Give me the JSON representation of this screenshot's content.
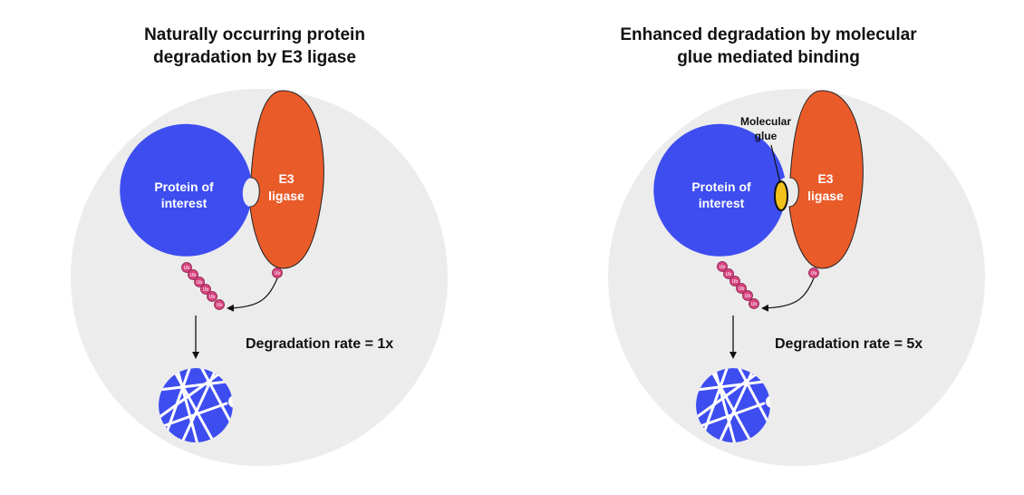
{
  "panels": [
    {
      "title_line1": "Naturally occurring protein",
      "title_line2": "degradation by E3 ligase",
      "protein_line1": "Protein of",
      "protein_line2": "interest",
      "ligase_line1": "E3",
      "ligase_line2": "ligase",
      "ubiquitin_label": "Ub",
      "rate_label": "Degradation rate = 1x"
    },
    {
      "title_line1": "Enhanced degradation by  molecular",
      "title_line2": "glue mediated binding",
      "glue_line1": "Molecular",
      "glue_line2": "glue",
      "protein_line1": "Protein of",
      "protein_line2": "interest",
      "ligase_line1": "E3",
      "ligase_line2": "ligase",
      "ubiquitin_label": "Ub",
      "rate_label": "Degradation rate = 5x"
    }
  ],
  "colors": {
    "background_circle": "#ececec",
    "protein": "#3d4df0",
    "ligase": "#ea5b2a",
    "glue": "#f2c21b",
    "ubiquitin": "#d6447f"
  }
}
